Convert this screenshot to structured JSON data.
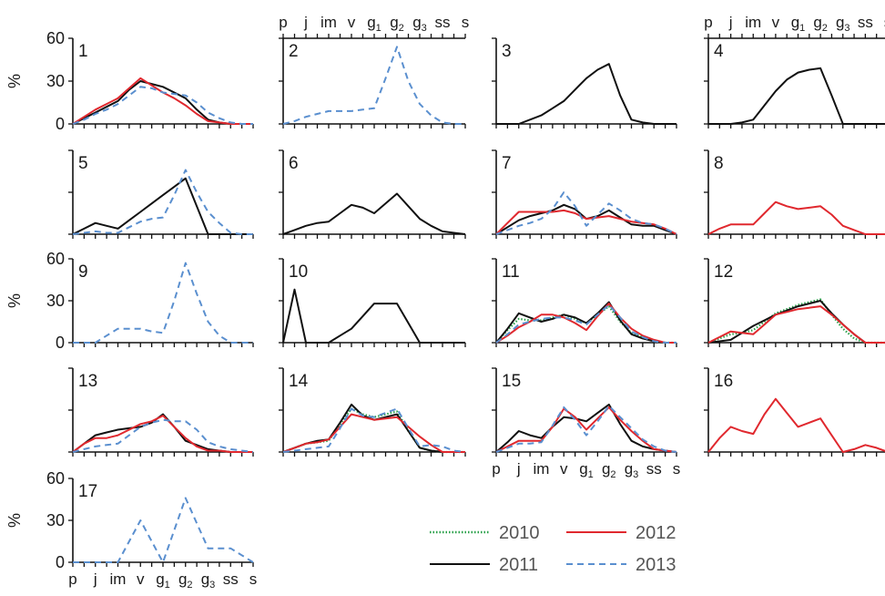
{
  "chart_data": {
    "type": "line",
    "categories": [
      "p",
      "j",
      "im",
      "v",
      "g1",
      "g2",
      "g3",
      "ss",
      "s"
    ],
    "tick_labels": [
      {
        "base": "p",
        "sub": ""
      },
      {
        "base": "j",
        "sub": ""
      },
      {
        "base": "im",
        "sub": ""
      },
      {
        "base": "v",
        "sub": ""
      },
      {
        "base": "g",
        "sub": "1"
      },
      {
        "base": "g",
        "sub": "2"
      },
      {
        "base": "g",
        "sub": "3"
      },
      {
        "base": "ss",
        "sub": ""
      },
      {
        "base": "s",
        "sub": ""
      }
    ],
    "x_positions": [
      0,
      0.5,
      1,
      1.5,
      2,
      2.5,
      3,
      3.5,
      4,
      4.5,
      5,
      5.5,
      6,
      6.5,
      7,
      7.5,
      8
    ],
    "ylabel": "%",
    "ylim": [
      0,
      60
    ],
    "yticks": [
      "0",
      "30",
      "60"
    ],
    "legend": {
      "placement": "bottom-right",
      "entries": [
        {
          "year": "2010",
          "color": "#2aa04a",
          "style": "dotted"
        },
        {
          "year": "2011",
          "color": "#111111",
          "style": "solid"
        },
        {
          "year": "2012",
          "color": "#e0282e",
          "style": "solid"
        },
        {
          "year": "2013",
          "color": "#5a8fcf",
          "style": "dashed"
        }
      ]
    },
    "panels": [
      {
        "id": "1",
        "series": [
          {
            "year": "2011",
            "values": [
              0,
              4,
              8,
              12,
              16,
              24,
              30,
              28,
              26,
              22,
              18,
              10,
              3,
              1,
              0,
              0,
              0
            ]
          },
          {
            "year": "2012",
            "values": [
              0,
              5,
              10,
              14,
              18,
              25,
              32,
              27,
              22,
              18,
              13,
              7,
              2,
              1,
              0,
              0,
              0
            ]
          },
          {
            "year": "2013",
            "values": [
              0,
              3,
              7,
              10,
              14,
              20,
              26,
              25,
              22,
              21,
              20,
              15,
              8,
              4,
              1,
              0,
              0
            ]
          }
        ]
      },
      {
        "id": "2",
        "series": [
          {
            "year": "2013",
            "values": [
              0,
              2,
              5,
              7,
              9,
              9,
              9,
              10,
              11,
              32,
              54,
              30,
              14,
              6,
              1,
              0,
              0
            ]
          }
        ]
      },
      {
        "id": "3",
        "series": [
          {
            "year": "2011",
            "values": [
              0,
              0,
              0,
              3,
              6,
              11,
              16,
              24,
              32,
              38,
              42,
              20,
              3,
              1,
              0,
              0,
              0
            ]
          }
        ]
      },
      {
        "id": "4",
        "series": [
          {
            "year": "2011",
            "values": [
              0,
              0,
              0,
              1,
              3,
              13,
              23,
              31,
              36,
              38,
              39,
              20,
              0,
              0,
              0,
              0,
              0
            ]
          }
        ]
      },
      {
        "id": "5",
        "series": [
          {
            "year": "2011",
            "values": [
              0,
              4,
              8,
              6,
              4,
              10,
              16,
              22,
              28,
              34,
              40,
              20,
              0,
              0,
              0,
              0,
              0
            ]
          },
          {
            "year": "2013",
            "values": [
              0,
              1,
              2,
              1,
              1,
              5,
              9,
              11,
              12,
              28,
              46,
              30,
              16,
              8,
              1,
              0,
              0
            ]
          }
        ]
      },
      {
        "id": "6",
        "series": [
          {
            "year": "2011",
            "values": [
              0,
              3,
              6,
              8,
              9,
              15,
              21,
              19,
              15,
              22,
              29,
              20,
              11,
              6,
              2,
              1,
              0
            ]
          }
        ]
      },
      {
        "id": "7",
        "series": [
          {
            "year": "2011",
            "values": [
              0,
              5,
              10,
              13,
              15,
              17,
              21,
              18,
              11,
              13,
              17,
              12,
              7,
              6,
              6,
              3,
              0
            ]
          },
          {
            "year": "2012",
            "values": [
              0,
              8,
              16,
              16,
              16,
              16,
              17,
              15,
              11,
              12,
              13,
              11,
              9,
              8,
              7,
              4,
              0
            ]
          },
          {
            "year": "2013",
            "values": [
              0,
              3,
              6,
              8,
              11,
              18,
              30,
              20,
              6,
              14,
              22,
              17,
              11,
              8,
              7,
              4,
              0
            ]
          }
        ]
      },
      {
        "id": "8",
        "series": [
          {
            "year": "2012",
            "values": [
              0,
              4,
              7,
              7,
              7,
              15,
              23,
              20,
              18,
              19,
              20,
              14,
              6,
              3,
              0,
              0,
              0
            ]
          }
        ]
      },
      {
        "id": "9",
        "series": [
          {
            "year": "2013",
            "values": [
              0,
              0,
              0,
              5,
              10,
              10,
              10,
              8,
              7,
              30,
              57,
              35,
              15,
              5,
              0,
              0,
              0
            ]
          }
        ]
      },
      {
        "id": "10",
        "series": [
          {
            "year": "2011",
            "values": [
              0,
              38,
              0,
              0,
              0,
              5,
              10,
              19,
              28,
              28,
              28,
              14,
              0,
              0,
              0,
              0,
              0
            ]
          }
        ]
      },
      {
        "id": "11",
        "series": [
          {
            "year": "2010",
            "values": [
              0,
              9,
              17,
              16,
              16,
              18,
              20,
              17,
              14,
              20,
              26,
              15,
              7,
              4,
              1,
              0,
              0
            ]
          },
          {
            "year": "2011",
            "values": [
              0,
              10,
              21,
              18,
              15,
              17,
              20,
              18,
              14,
              21,
              29,
              16,
              6,
              3,
              1,
              0,
              0
            ]
          },
          {
            "year": "2012",
            "values": [
              0,
              5,
              11,
              15,
              20,
              20,
              18,
              14,
              9,
              19,
              28,
              18,
              10,
              5,
              2,
              0,
              0
            ]
          },
          {
            "year": "2013",
            "values": [
              0,
              6,
              13,
              15,
              17,
              18,
              18,
              16,
              13,
              20,
              27,
              18,
              8,
              4,
              1,
              0,
              0
            ]
          }
        ]
      },
      {
        "id": "12",
        "series": [
          {
            "year": "2010",
            "values": [
              0,
              3,
              6,
              7,
              9,
              15,
              21,
              24,
              27,
              29,
              31,
              20,
              10,
              3,
              0,
              0,
              0
            ]
          },
          {
            "year": "2011",
            "values": [
              0,
              1,
              2,
              7,
              12,
              16,
              20,
              23,
              26,
              28,
              30,
              21,
              13,
              6,
              0,
              0,
              0
            ]
          },
          {
            "year": "2012",
            "values": [
              0,
              4,
              8,
              7,
              6,
              13,
              20,
              22,
              24,
              25,
              26,
              20,
              13,
              6,
              0,
              0,
              0
            ]
          }
        ]
      },
      {
        "id": "13",
        "series": [
          {
            "year": "2011",
            "values": [
              0,
              6,
              12,
              14,
              16,
              17,
              18,
              21,
              27,
              18,
              8,
              5,
              2,
              1,
              0,
              0,
              0
            ]
          },
          {
            "year": "2012",
            "values": [
              0,
              6,
              10,
              10,
              12,
              16,
              20,
              22,
              26,
              18,
              10,
              4,
              1,
              1,
              0,
              0,
              0
            ]
          },
          {
            "year": "2013",
            "values": [
              0,
              2,
              4,
              5,
              6,
              12,
              18,
              21,
              23,
              22,
              22,
              16,
              7,
              4,
              2,
              1,
              0
            ]
          }
        ]
      },
      {
        "id": "14",
        "series": [
          {
            "year": "2010",
            "values": [
              0,
              3,
              6,
              7,
              8,
              20,
              31,
              27,
              25,
              27,
              29,
              15,
              3,
              1,
              0,
              0,
              0
            ]
          },
          {
            "year": "2011",
            "values": [
              0,
              3,
              6,
              8,
              9,
              21,
              34,
              26,
              23,
              25,
              27,
              15,
              3,
              1,
              0,
              0,
              0
            ]
          },
          {
            "year": "2012",
            "values": [
              0,
              3,
              6,
              7,
              9,
              18,
              27,
              25,
              23,
              24,
              25,
              18,
              11,
              5,
              0,
              0,
              0
            ]
          },
          {
            "year": "2013",
            "values": [
              0,
              1,
              2,
              3,
              4,
              17,
              31,
              26,
              25,
              28,
              31,
              17,
              4,
              5,
              4,
              1,
              0
            ]
          }
        ]
      },
      {
        "id": "15",
        "series": [
          {
            "year": "2011",
            "values": [
              0,
              7,
              15,
              12,
              10,
              18,
              25,
              24,
              22,
              28,
              34,
              20,
              8,
              4,
              2,
              1,
              0
            ]
          },
          {
            "year": "2012",
            "values": [
              0,
              4,
              8,
              8,
              8,
              18,
              31,
              25,
              16,
              24,
              32,
              23,
              15,
              8,
              2,
              1,
              0
            ]
          },
          {
            "year": "2013",
            "values": [
              0,
              3,
              6,
              6,
              7,
              19,
              32,
              23,
              12,
              22,
              33,
              25,
              17,
              9,
              4,
              1,
              0
            ]
          }
        ]
      },
      {
        "id": "16",
        "series": [
          {
            "year": "2012",
            "values": [
              0,
              10,
              18,
              15,
              13,
              27,
              38,
              28,
              18,
              21,
              24,
              12,
              0,
              2,
              5,
              3,
              0
            ]
          }
        ]
      },
      {
        "id": "17",
        "series": [
          {
            "year": "2013",
            "values": [
              0,
              0,
              0,
              0,
              0,
              15,
              30,
              15,
              0,
              23,
              46,
              28,
              10,
              10,
              10,
              5,
              0
            ]
          }
        ]
      }
    ]
  }
}
